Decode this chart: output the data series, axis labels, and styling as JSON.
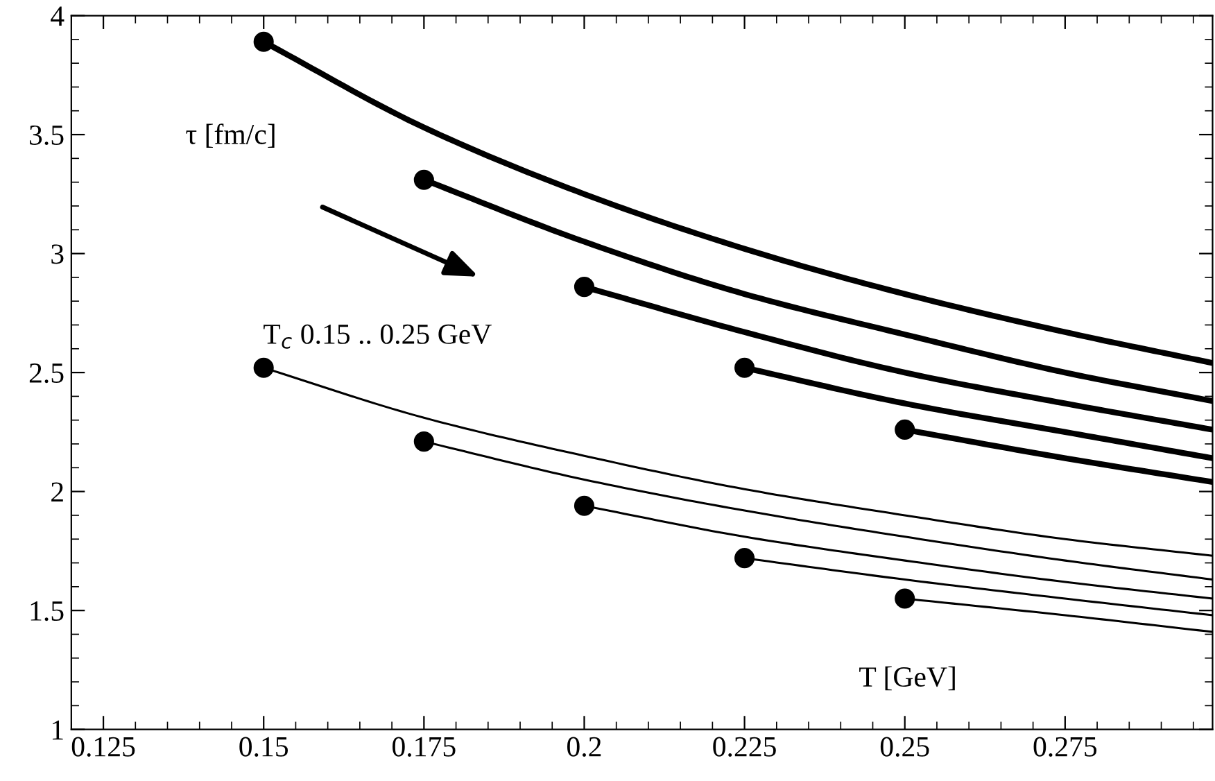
{
  "chart_data": {
    "type": "line",
    "xlabel": "T [GeV]",
    "ylabel": "τ [fm/c]",
    "xlim": [
      0.12,
      0.298
    ],
    "ylim": [
      1,
      4
    ],
    "xticks": [
      0.125,
      0.15,
      0.175,
      0.2,
      0.225,
      0.25,
      0.275
    ],
    "yticks": [
      1,
      1.5,
      2,
      2.5,
      3,
      3.5,
      4
    ],
    "grid": false,
    "legend": false,
    "line_style": "solid",
    "annotations": [
      "T$_{c}$ 0.15 .. 0.25 GeV"
    ],
    "series": [
      {
        "color": "#000000",
        "x": [
          0.15,
          0.175,
          0.2,
          0.225,
          0.25,
          0.275,
          0.298
        ],
        "values": [
          3.89,
          3.53,
          3.25,
          3.02,
          2.83,
          2.67,
          2.54
        ]
      },
      {
        "color": "#000000",
        "x": [
          0.175,
          0.2,
          0.225,
          0.25,
          0.275,
          0.298
        ],
        "values": [
          3.31,
          3.05,
          2.83,
          2.66,
          2.5,
          2.38
        ]
      },
      {
        "color": "#000000",
        "x": [
          0.2,
          0.225,
          0.25,
          0.275,
          0.298
        ],
        "values": [
          2.86,
          2.67,
          2.5,
          2.37,
          2.26
        ]
      },
      {
        "color": "#000000",
        "x": [
          0.225,
          0.25,
          0.275,
          0.298
        ],
        "values": [
          2.52,
          2.37,
          2.25,
          2.14
        ]
      },
      {
        "color": "#000000",
        "x": [
          0.25,
          0.275,
          0.298
        ],
        "values": [
          2.26,
          2.14,
          2.04
        ]
      },
      {
        "color": "#000000",
        "x": [
          0.15,
          0.175,
          0.2,
          0.225,
          0.25,
          0.275,
          0.298
        ],
        "values": [
          2.52,
          2.31,
          2.15,
          2.01,
          1.9,
          1.8,
          1.73
        ]
      },
      {
        "color": "#000000",
        "x": [
          0.175,
          0.2,
          0.225,
          0.25,
          0.275,
          0.298
        ],
        "values": [
          2.21,
          2.05,
          1.92,
          1.81,
          1.71,
          1.63
        ]
      },
      {
        "color": "#000000",
        "x": [
          0.2,
          0.225,
          0.25,
          0.275,
          0.298
        ],
        "values": [
          1.94,
          1.81,
          1.71,
          1.62,
          1.55
        ]
      },
      {
        "color": "#000000",
        "x": [
          0.225,
          0.25,
          0.275,
          0.298
        ],
        "values": [
          1.72,
          1.63,
          1.55,
          1.48
        ]
      },
      {
        "color": "#000000",
        "x": [
          0.25,
          0.275,
          0.298
        ],
        "values": [
          1.55,
          1.48,
          1.41
        ]
      },
      {
        "type": "scatter",
        "marker": "circle",
        "color": "#000000",
        "x": [
          0.15,
          0.175,
          0.2,
          0.225,
          0.25,
          0.15,
          0.175,
          0.2,
          0.225,
          0.25
        ],
        "values": [
          3.89,
          3.31,
          2.86,
          2.52,
          2.26,
          2.52,
          2.21,
          1.94,
          1.72,
          1.55
        ]
      }
    ]
  }
}
